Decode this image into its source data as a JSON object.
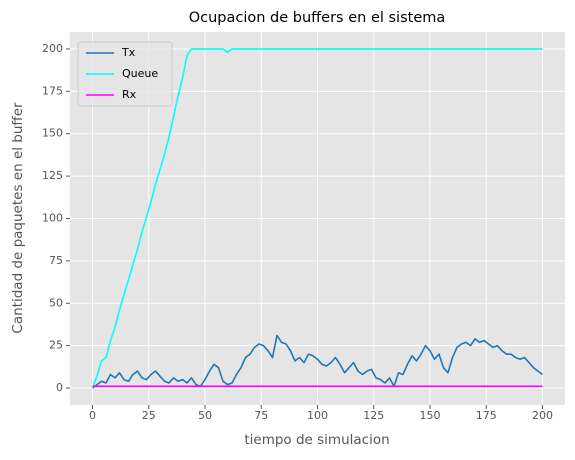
{
  "chart_data": {
    "type": "line",
    "title": "Ocupacion de buffers en el sistema",
    "xlabel": "tiempo de simulacion",
    "ylabel": "Cantidad de paquetes en el buffer",
    "x": [
      0,
      2,
      4,
      6,
      8,
      10,
      12,
      14,
      16,
      18,
      20,
      22,
      24,
      26,
      28,
      30,
      32,
      34,
      36,
      38,
      40,
      42,
      44,
      46,
      48,
      50,
      52,
      54,
      56,
      58,
      60,
      62,
      64,
      66,
      68,
      70,
      72,
      74,
      76,
      78,
      80,
      82,
      84,
      86,
      88,
      90,
      92,
      94,
      96,
      98,
      100,
      102,
      104,
      106,
      108,
      110,
      112,
      114,
      116,
      118,
      120,
      122,
      124,
      126,
      128,
      130,
      132,
      134,
      136,
      138,
      140,
      142,
      144,
      146,
      148,
      150,
      152,
      154,
      156,
      158,
      160,
      162,
      164,
      166,
      168,
      170,
      172,
      174,
      176,
      178,
      180,
      182,
      184,
      186,
      188,
      190,
      192,
      194,
      196,
      198,
      200
    ],
    "series": [
      {
        "name": "Tx",
        "color": "#1f77b4",
        "values": [
          0,
          2,
          4,
          3,
          8,
          6,
          9,
          5,
          4,
          8,
          10,
          6,
          5,
          8,
          10,
          7,
          4,
          3,
          6,
          4,
          5,
          3,
          6,
          2,
          1,
          5,
          10,
          14,
          12,
          4,
          2,
          3,
          8,
          12,
          18,
          20,
          24,
          26,
          25,
          22,
          18,
          31,
          27,
          26,
          22,
          16,
          18,
          15,
          20,
          19,
          17,
          14,
          13,
          15,
          18,
          14,
          9,
          12,
          15,
          10,
          8,
          10,
          11,
          6,
          5,
          3,
          6,
          1,
          9,
          8,
          14,
          19,
          16,
          20,
          25,
          22,
          17,
          20,
          12,
          9,
          18,
          24,
          26,
          27,
          25,
          29,
          27,
          28,
          26,
          24,
          25,
          22,
          20,
          20,
          18,
          17,
          18,
          15,
          12,
          10,
          8
        ]
      },
      {
        "name": "Queue",
        "color": "#00ffff",
        "values": [
          0,
          7,
          16,
          18,
          28,
          36,
          46,
          55,
          64,
          73,
          82,
          92,
          101,
          110,
          120,
          129,
          138,
          148,
          160,
          172,
          183,
          196,
          200,
          200,
          200,
          200,
          200,
          200,
          200,
          200,
          198,
          200,
          200,
          200,
          200,
          200,
          200,
          200,
          200,
          200,
          200,
          200,
          200,
          200,
          200,
          200,
          200,
          200,
          200,
          200,
          200,
          200,
          200,
          200,
          200,
          200,
          200,
          200,
          200,
          200,
          200,
          200,
          200,
          200,
          200,
          200,
          200,
          200,
          200,
          200,
          200,
          200,
          200,
          200,
          200,
          200,
          200,
          200,
          200,
          200,
          200,
          200,
          200,
          200,
          200,
          200,
          200,
          200,
          200,
          200,
          200,
          200,
          200,
          200,
          200,
          200,
          200,
          200,
          200,
          200,
          200
        ]
      },
      {
        "name": "Rx",
        "color": "#ff00ff",
        "values": [
          1,
          1,
          1,
          1,
          1,
          1,
          1,
          1,
          1,
          1,
          1,
          1,
          1,
          1,
          1,
          1,
          1,
          1,
          1,
          1,
          1,
          1,
          1,
          1,
          1,
          1,
          1,
          1,
          1,
          1,
          1,
          1,
          1,
          1,
          1,
          1,
          1,
          1,
          1,
          1,
          1,
          1,
          1,
          1,
          1,
          1,
          1,
          1,
          1,
          1,
          1,
          1,
          1,
          1,
          1,
          1,
          1,
          1,
          1,
          1,
          1,
          1,
          1,
          1,
          1,
          1,
          1,
          1,
          1,
          1,
          1,
          1,
          1,
          1,
          1,
          1,
          1,
          1,
          1,
          1,
          1,
          1,
          1,
          1,
          1,
          1,
          1,
          1,
          1,
          1,
          1,
          1,
          1,
          1,
          1,
          1,
          1,
          1,
          1,
          1,
          1
        ]
      }
    ],
    "xlim": [
      -10,
      210
    ],
    "ylim": [
      -10,
      210
    ],
    "xticks": [
      0,
      25,
      50,
      75,
      100,
      125,
      150,
      175,
      200
    ],
    "yticks": [
      0,
      25,
      50,
      75,
      100,
      125,
      150,
      175,
      200
    ],
    "grid": true,
    "legend": "upper left"
  }
}
